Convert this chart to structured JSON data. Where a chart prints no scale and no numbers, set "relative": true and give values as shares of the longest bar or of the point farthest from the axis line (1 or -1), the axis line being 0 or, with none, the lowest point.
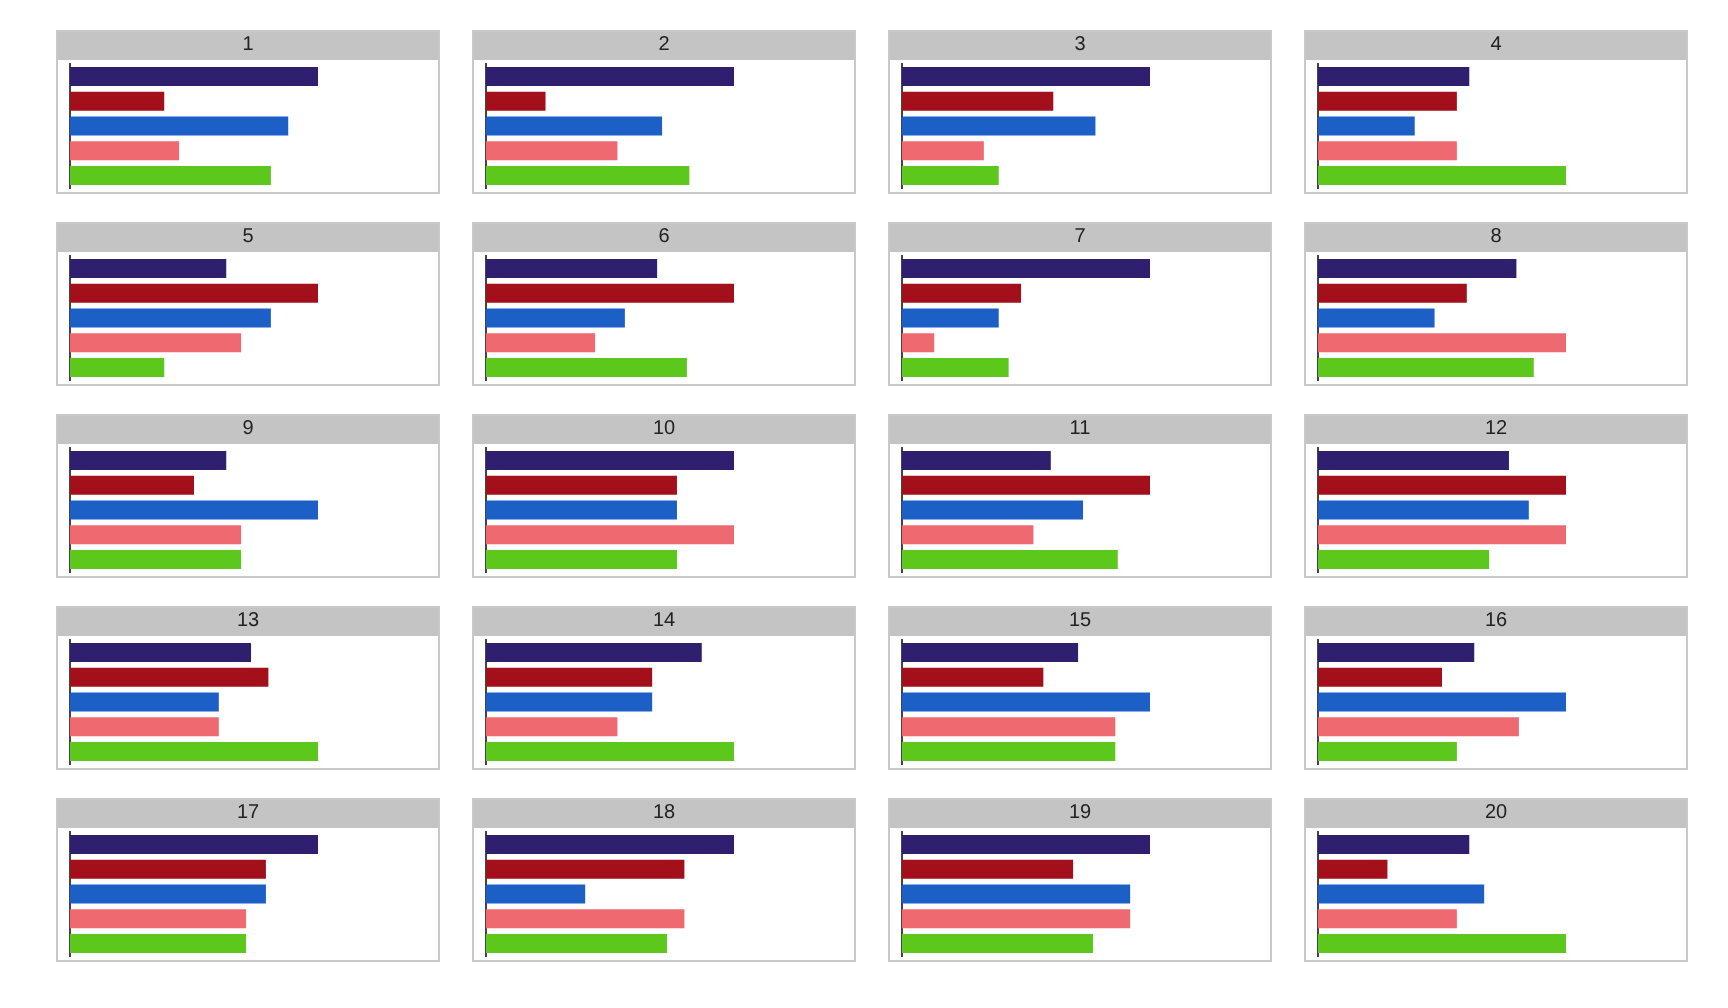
{
  "chart_data": [
    {
      "type": "bar",
      "orientation": "horizontal",
      "relative": true,
      "title": "1",
      "categories": [
        null,
        null,
        null,
        null,
        null
      ],
      "values": [
        1,
        0.38,
        0.88,
        0.44,
        0.81
      ],
      "colors": [
        "#2f1f6e",
        "#a3101c",
        "#1c5fc6",
        "#ee6a70",
        "#5cc81b"
      ]
    },
    {
      "type": "bar",
      "orientation": "horizontal",
      "relative": true,
      "title": "2",
      "categories": [
        null,
        null,
        null,
        null,
        null
      ],
      "values": [
        1,
        0.24,
        0.71,
        0.53,
        0.82
      ],
      "colors": [
        "#2f1f6e",
        "#a3101c",
        "#1c5fc6",
        "#ee6a70",
        "#5cc81b"
      ]
    },
    {
      "type": "bar",
      "orientation": "horizontal",
      "relative": true,
      "title": "3",
      "categories": [
        null,
        null,
        null,
        null,
        null
      ],
      "values": [
        1,
        0.61,
        0.78,
        0.33,
        0.39
      ],
      "colors": [
        "#2f1f6e",
        "#a3101c",
        "#1c5fc6",
        "#ee6a70",
        "#5cc81b"
      ]
    },
    {
      "type": "bar",
      "orientation": "horizontal",
      "relative": true,
      "title": "4",
      "categories": [
        null,
        null,
        null,
        null,
        null
      ],
      "values": [
        0.61,
        0.56,
        0.39,
        0.56,
        1
      ],
      "colors": [
        "#2f1f6e",
        "#a3101c",
        "#1c5fc6",
        "#ee6a70",
        "#5cc81b"
      ]
    },
    {
      "type": "bar",
      "orientation": "horizontal",
      "relative": true,
      "title": "5",
      "categories": [
        null,
        null,
        null,
        null,
        null
      ],
      "values": [
        0.63,
        1,
        0.81,
        0.69,
        0.38
      ],
      "colors": [
        "#2f1f6e",
        "#a3101c",
        "#1c5fc6",
        "#ee6a70",
        "#5cc81b"
      ]
    },
    {
      "type": "bar",
      "orientation": "horizontal",
      "relative": true,
      "title": "6",
      "categories": [
        null,
        null,
        null,
        null,
        null
      ],
      "values": [
        0.69,
        1,
        0.56,
        0.44,
        0.81
      ],
      "colors": [
        "#2f1f6e",
        "#a3101c",
        "#1c5fc6",
        "#ee6a70",
        "#5cc81b"
      ]
    },
    {
      "type": "bar",
      "orientation": "horizontal",
      "relative": true,
      "title": "7",
      "categories": [
        null,
        null,
        null,
        null,
        null
      ],
      "values": [
        1,
        0.48,
        0.39,
        0.13,
        0.43
      ],
      "colors": [
        "#2f1f6e",
        "#a3101c",
        "#1c5fc6",
        "#ee6a70",
        "#5cc81b"
      ]
    },
    {
      "type": "bar",
      "orientation": "horizontal",
      "relative": true,
      "title": "8",
      "categories": [
        null,
        null,
        null,
        null,
        null
      ],
      "values": [
        0.8,
        0.6,
        0.47,
        1,
        0.87
      ],
      "colors": [
        "#2f1f6e",
        "#a3101c",
        "#1c5fc6",
        "#ee6a70",
        "#5cc81b"
      ]
    },
    {
      "type": "bar",
      "orientation": "horizontal",
      "relative": true,
      "title": "9",
      "categories": [
        null,
        null,
        null,
        null,
        null
      ],
      "values": [
        0.63,
        0.5,
        1,
        0.69,
        0.69
      ],
      "colors": [
        "#2f1f6e",
        "#a3101c",
        "#1c5fc6",
        "#ee6a70",
        "#5cc81b"
      ]
    },
    {
      "type": "bar",
      "orientation": "horizontal",
      "relative": true,
      "title": "10",
      "categories": [
        null,
        null,
        null,
        null,
        null
      ],
      "values": [
        1,
        0.77,
        0.77,
        1,
        0.77
      ],
      "colors": [
        "#2f1f6e",
        "#a3101c",
        "#1c5fc6",
        "#ee6a70",
        "#5cc81b"
      ]
    },
    {
      "type": "bar",
      "orientation": "horizontal",
      "relative": true,
      "title": "11",
      "categories": [
        null,
        null,
        null,
        null,
        null
      ],
      "values": [
        0.6,
        1,
        0.73,
        0.53,
        0.87
      ],
      "colors": [
        "#2f1f6e",
        "#a3101c",
        "#1c5fc6",
        "#ee6a70",
        "#5cc81b"
      ]
    },
    {
      "type": "bar",
      "orientation": "horizontal",
      "relative": true,
      "title": "12",
      "categories": [
        null,
        null,
        null,
        null,
        null
      ],
      "values": [
        0.77,
        1,
        0.85,
        1,
        0.69
      ],
      "colors": [
        "#2f1f6e",
        "#a3101c",
        "#1c5fc6",
        "#ee6a70",
        "#5cc81b"
      ]
    },
    {
      "type": "bar",
      "orientation": "horizontal",
      "relative": true,
      "title": "13",
      "categories": [
        null,
        null,
        null,
        null,
        null
      ],
      "values": [
        0.73,
        0.8,
        0.6,
        0.6,
        1
      ],
      "colors": [
        "#2f1f6e",
        "#a3101c",
        "#1c5fc6",
        "#ee6a70",
        "#5cc81b"
      ]
    },
    {
      "type": "bar",
      "orientation": "horizontal",
      "relative": true,
      "title": "14",
      "categories": [
        null,
        null,
        null,
        null,
        null
      ],
      "values": [
        0.87,
        0.67,
        0.67,
        0.53,
        1
      ],
      "colors": [
        "#2f1f6e",
        "#a3101c",
        "#1c5fc6",
        "#ee6a70",
        "#5cc81b"
      ]
    },
    {
      "type": "bar",
      "orientation": "horizontal",
      "relative": true,
      "title": "15",
      "categories": [
        null,
        null,
        null,
        null,
        null
      ],
      "values": [
        0.71,
        0.57,
        1,
        0.86,
        0.86
      ],
      "colors": [
        "#2f1f6e",
        "#a3101c",
        "#1c5fc6",
        "#ee6a70",
        "#5cc81b"
      ]
    },
    {
      "type": "bar",
      "orientation": "horizontal",
      "relative": true,
      "title": "16",
      "categories": [
        null,
        null,
        null,
        null,
        null
      ],
      "values": [
        0.63,
        0.5,
        1,
        0.81,
        0.56
      ],
      "colors": [
        "#2f1f6e",
        "#a3101c",
        "#1c5fc6",
        "#ee6a70",
        "#5cc81b"
      ]
    },
    {
      "type": "bar",
      "orientation": "horizontal",
      "relative": true,
      "title": "17",
      "categories": [
        null,
        null,
        null,
        null,
        null
      ],
      "values": [
        1,
        0.79,
        0.79,
        0.71,
        0.71
      ],
      "colors": [
        "#2f1f6e",
        "#a3101c",
        "#1c5fc6",
        "#ee6a70",
        "#5cc81b"
      ]
    },
    {
      "type": "bar",
      "orientation": "horizontal",
      "relative": true,
      "title": "18",
      "categories": [
        null,
        null,
        null,
        null,
        null
      ],
      "values": [
        1,
        0.8,
        0.4,
        0.8,
        0.73
      ],
      "colors": [
        "#2f1f6e",
        "#a3101c",
        "#1c5fc6",
        "#ee6a70",
        "#5cc81b"
      ]
    },
    {
      "type": "bar",
      "orientation": "horizontal",
      "relative": true,
      "title": "19",
      "categories": [
        null,
        null,
        null,
        null,
        null
      ],
      "values": [
        1,
        0.69,
        0.92,
        0.92,
        0.77
      ],
      "colors": [
        "#2f1f6e",
        "#a3101c",
        "#1c5fc6",
        "#ee6a70",
        "#5cc81b"
      ]
    },
    {
      "type": "bar",
      "orientation": "horizontal",
      "relative": true,
      "title": "20",
      "categories": [
        null,
        null,
        null,
        null,
        null
      ],
      "values": [
        0.61,
        0.28,
        0.67,
        0.56,
        1
      ],
      "colors": [
        "#2f1f6e",
        "#a3101c",
        "#1c5fc6",
        "#ee6a70",
        "#5cc81b"
      ]
    }
  ]
}
